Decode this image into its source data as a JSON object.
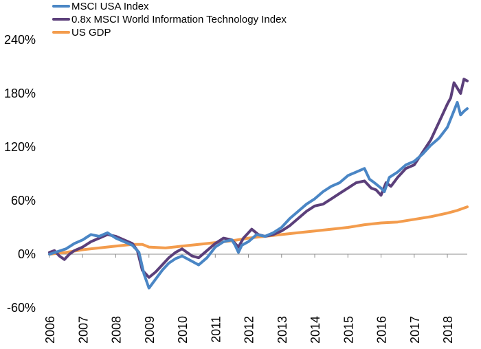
{
  "chart_data": {
    "type": "line",
    "title": "",
    "xlabel": "",
    "ylabel": "",
    "x_ticks": [
      "2006",
      "2007",
      "2008",
      "2009",
      "2010",
      "2011",
      "2012",
      "2013",
      "2014",
      "2015",
      "2016",
      "2017",
      "2018"
    ],
    "y_ticks": [
      "-60%",
      "0%",
      "60%",
      "120%",
      "180%",
      "240%"
    ],
    "xlim": [
      2006.0,
      2018.6
    ],
    "ylim": [
      -60,
      240
    ],
    "y_unit": "%",
    "grid": false,
    "legend_position": "top-left",
    "series": [
      {
        "name": "MSCI USA Index",
        "color": "#4A86C5",
        "points": [
          [
            2006.0,
            0
          ],
          [
            2006.25,
            3
          ],
          [
            2006.5,
            6
          ],
          [
            2006.75,
            12
          ],
          [
            2007.0,
            16
          ],
          [
            2007.25,
            22
          ],
          [
            2007.5,
            20
          ],
          [
            2007.75,
            24
          ],
          [
            2008.0,
            18
          ],
          [
            2008.25,
            14
          ],
          [
            2008.5,
            10
          ],
          [
            2008.7,
            2
          ],
          [
            2008.85,
            -22
          ],
          [
            2009.0,
            -38
          ],
          [
            2009.2,
            -28
          ],
          [
            2009.4,
            -18
          ],
          [
            2009.6,
            -10
          ],
          [
            2009.8,
            -5
          ],
          [
            2010.0,
            -2
          ],
          [
            2010.3,
            -8
          ],
          [
            2010.5,
            -12
          ],
          [
            2010.75,
            -4
          ],
          [
            2011.0,
            8
          ],
          [
            2011.25,
            14
          ],
          [
            2011.5,
            16
          ],
          [
            2011.6,
            10
          ],
          [
            2011.7,
            2
          ],
          [
            2011.8,
            10
          ],
          [
            2012.0,
            14
          ],
          [
            2012.25,
            22
          ],
          [
            2012.5,
            20
          ],
          [
            2012.75,
            24
          ],
          [
            2013.0,
            30
          ],
          [
            2013.25,
            40
          ],
          [
            2013.5,
            48
          ],
          [
            2013.75,
            56
          ],
          [
            2014.0,
            62
          ],
          [
            2014.25,
            70
          ],
          [
            2014.5,
            76
          ],
          [
            2014.75,
            80
          ],
          [
            2015.0,
            88
          ],
          [
            2015.25,
            92
          ],
          [
            2015.5,
            96
          ],
          [
            2015.65,
            84
          ],
          [
            2015.8,
            80
          ],
          [
            2016.0,
            74
          ],
          [
            2016.1,
            70
          ],
          [
            2016.25,
            86
          ],
          [
            2016.5,
            92
          ],
          [
            2016.75,
            100
          ],
          [
            2017.0,
            104
          ],
          [
            2017.25,
            112
          ],
          [
            2017.5,
            122
          ],
          [
            2017.75,
            130
          ],
          [
            2018.0,
            142
          ],
          [
            2018.15,
            156
          ],
          [
            2018.3,
            170
          ],
          [
            2018.4,
            156
          ],
          [
            2018.5,
            160
          ],
          [
            2018.6,
            163
          ]
        ]
      },
      {
        "name": "0.8x MSCI World Information Technology Index",
        "color": "#5B3F7A",
        "points": [
          [
            2006.0,
            2
          ],
          [
            2006.15,
            4
          ],
          [
            2006.3,
            -2
          ],
          [
            2006.45,
            -6
          ],
          [
            2006.6,
            0
          ],
          [
            2006.75,
            4
          ],
          [
            2007.0,
            8
          ],
          [
            2007.25,
            14
          ],
          [
            2007.5,
            18
          ],
          [
            2007.75,
            22
          ],
          [
            2008.0,
            20
          ],
          [
            2008.25,
            16
          ],
          [
            2008.5,
            12
          ],
          [
            2008.65,
            4
          ],
          [
            2008.8,
            -18
          ],
          [
            2009.0,
            -26
          ],
          [
            2009.2,
            -20
          ],
          [
            2009.4,
            -12
          ],
          [
            2009.6,
            -4
          ],
          [
            2009.8,
            2
          ],
          [
            2010.0,
            6
          ],
          [
            2010.3,
            -2
          ],
          [
            2010.5,
            -4
          ],
          [
            2010.75,
            4
          ],
          [
            2011.0,
            12
          ],
          [
            2011.25,
            18
          ],
          [
            2011.5,
            16
          ],
          [
            2011.7,
            8
          ],
          [
            2011.85,
            18
          ],
          [
            2012.0,
            24
          ],
          [
            2012.1,
            28
          ],
          [
            2012.3,
            22
          ],
          [
            2012.5,
            20
          ],
          [
            2012.75,
            22
          ],
          [
            2013.0,
            26
          ],
          [
            2013.25,
            32
          ],
          [
            2013.5,
            40
          ],
          [
            2013.75,
            48
          ],
          [
            2014.0,
            54
          ],
          [
            2014.25,
            56
          ],
          [
            2014.5,
            62
          ],
          [
            2014.75,
            68
          ],
          [
            2015.0,
            74
          ],
          [
            2015.25,
            80
          ],
          [
            2015.5,
            82
          ],
          [
            2015.7,
            74
          ],
          [
            2015.85,
            72
          ],
          [
            2016.0,
            66
          ],
          [
            2016.15,
            80
          ],
          [
            2016.3,
            76
          ],
          [
            2016.5,
            86
          ],
          [
            2016.75,
            96
          ],
          [
            2017.0,
            100
          ],
          [
            2017.25,
            114
          ],
          [
            2017.5,
            128
          ],
          [
            2017.75,
            148
          ],
          [
            2018.0,
            168
          ],
          [
            2018.1,
            175
          ],
          [
            2018.2,
            192
          ],
          [
            2018.3,
            186
          ],
          [
            2018.4,
            180
          ],
          [
            2018.5,
            196
          ],
          [
            2018.6,
            194
          ]
        ]
      },
      {
        "name": "US GDP",
        "color": "#F39C4D",
        "points": [
          [
            2006.0,
            0
          ],
          [
            2006.5,
            2
          ],
          [
            2007.0,
            5
          ],
          [
            2007.5,
            7
          ],
          [
            2008.0,
            9
          ],
          [
            2008.5,
            11
          ],
          [
            2008.8,
            11
          ],
          [
            2009.0,
            8
          ],
          [
            2009.5,
            7
          ],
          [
            2010.0,
            9
          ],
          [
            2010.5,
            11
          ],
          [
            2011.0,
            13
          ],
          [
            2011.5,
            15
          ],
          [
            2012.0,
            18
          ],
          [
            2012.5,
            20
          ],
          [
            2013.0,
            22
          ],
          [
            2013.5,
            24
          ],
          [
            2014.0,
            26
          ],
          [
            2014.5,
            28
          ],
          [
            2015.0,
            30
          ],
          [
            2015.5,
            33
          ],
          [
            2016.0,
            35
          ],
          [
            2016.5,
            36
          ],
          [
            2017.0,
            39
          ],
          [
            2017.5,
            42
          ],
          [
            2018.0,
            46
          ],
          [
            2018.3,
            49
          ],
          [
            2018.6,
            53
          ]
        ]
      }
    ]
  }
}
